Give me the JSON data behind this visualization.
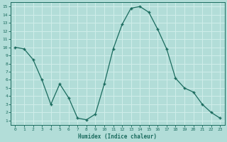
{
  "x": [
    0,
    1,
    2,
    3,
    4,
    5,
    6,
    7,
    8,
    9,
    10,
    11,
    12,
    13,
    14,
    15,
    16,
    17,
    18,
    19,
    20,
    21,
    22,
    23
  ],
  "y": [
    10,
    9.8,
    8.5,
    6.0,
    3.0,
    5.5,
    3.8,
    1.3,
    1.1,
    1.8,
    5.5,
    9.8,
    12.8,
    14.8,
    15.0,
    14.3,
    12.2,
    9.8,
    6.2,
    5.0,
    4.5,
    3.0,
    2.0,
    1.3
  ],
  "xlabel": "Humidex (Indice chaleur)",
  "xlim_min": -0.5,
  "xlim_max": 23.5,
  "ylim_min": 0.5,
  "ylim_max": 15.5,
  "yticks": [
    1,
    2,
    3,
    4,
    5,
    6,
    7,
    8,
    9,
    10,
    11,
    12,
    13,
    14,
    15
  ],
  "xticks": [
    0,
    1,
    2,
    3,
    4,
    5,
    6,
    7,
    8,
    9,
    10,
    11,
    12,
    13,
    14,
    15,
    16,
    17,
    18,
    19,
    20,
    21,
    22,
    23
  ],
  "line_color": "#1a6b5e",
  "marker": "+",
  "bg_color": "#b2ddd8",
  "grid_color": "#d0eeea",
  "tick_color": "#1a6b5e",
  "label_color": "#1a6b5e"
}
